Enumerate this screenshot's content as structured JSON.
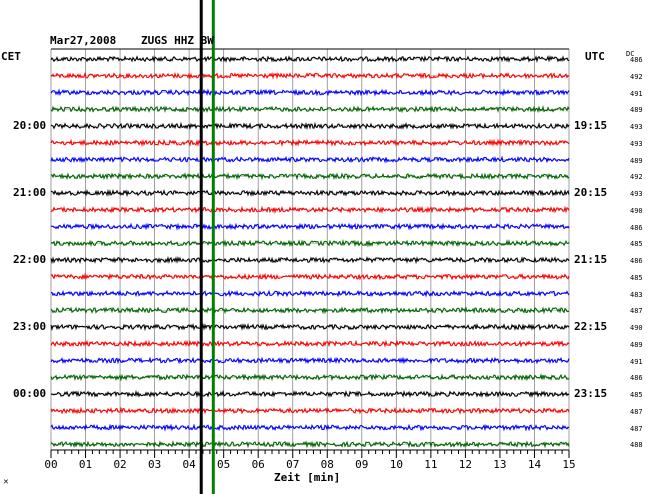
{
  "header": {
    "date": "Mar27,2008",
    "station": "ZUGS HHZ BW",
    "left_tz": "CET",
    "right_tz": "UTC",
    "dc_header": "DC"
  },
  "left_time_labels": [
    "20:00",
    "21:00",
    "22:00",
    "23:00",
    "00:00"
  ],
  "right_time_labels": [
    "19:15",
    "20:15",
    "21:15",
    "22:15",
    "23:15"
  ],
  "dc_values": [
    "486",
    "492",
    "491",
    "489",
    "493",
    "493",
    "489",
    "492",
    "493",
    "490",
    "486",
    "485",
    "486",
    "485",
    "483",
    "487",
    "490",
    "489",
    "491",
    "486",
    "485",
    "487",
    "487",
    "488"
  ],
  "trace_colors": [
    "#000000",
    "#ff0000",
    "#0000ff",
    "#006400"
  ],
  "x_axis": {
    "ticks": [
      "00",
      "01",
      "02",
      "03",
      "04",
      "05",
      "06",
      "07",
      "08",
      "09",
      "10",
      "11",
      "12",
      "13",
      "14",
      "15"
    ],
    "label": "Zeit [min]",
    "range": [
      0,
      15
    ]
  },
  "event_markers": [
    {
      "minute": 4.35,
      "color": "#000000"
    },
    {
      "minute": 4.7,
      "color": "#008000"
    }
  ],
  "corner_mark": "✕"
}
